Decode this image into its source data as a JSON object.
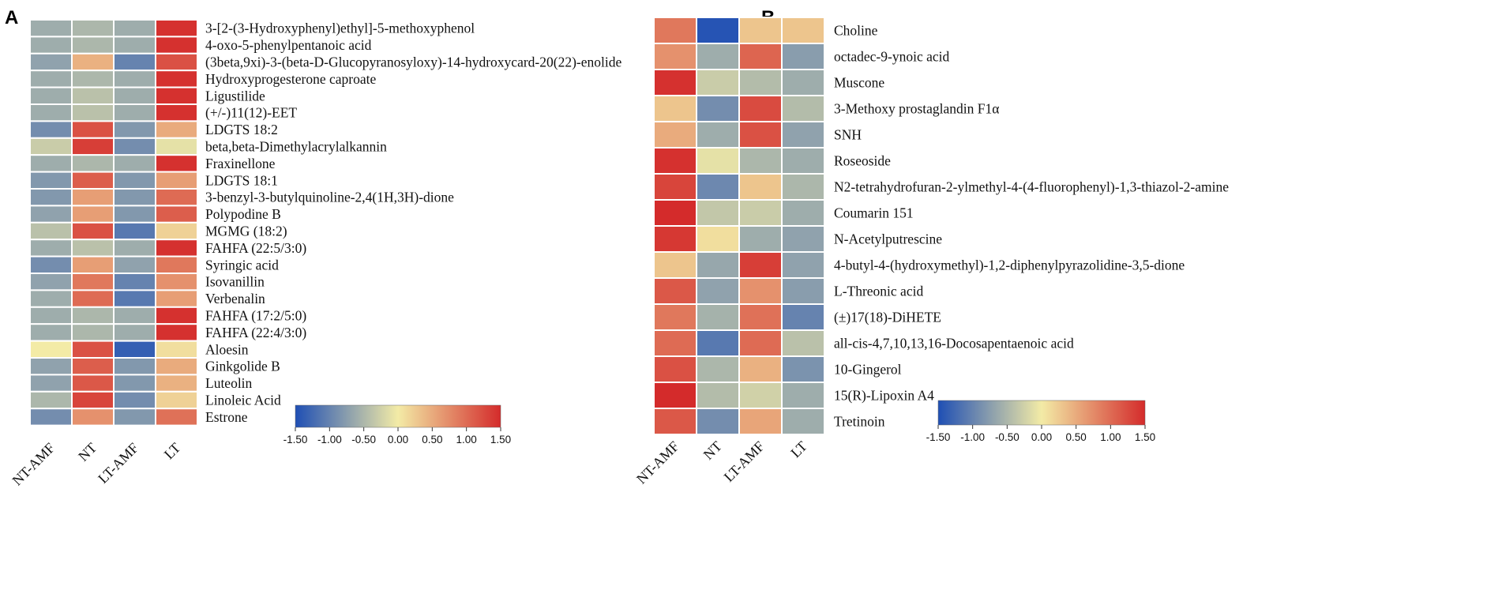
{
  "colorscale": {
    "stops": [
      "#1f4fb4",
      "#f3eba6",
      "#d42b2b"
    ],
    "min": -1.5,
    "max": 1.5
  },
  "chart_data": [
    {
      "panel": "A",
      "type": "heatmap",
      "columns": [
        "NT-AMF",
        "NT",
        "LT-AMF",
        "LT"
      ],
      "rows": [
        "3-[2-(3-Hydroxyphenyl)ethyl]-5-methoxyphenol",
        "4-oxo-5-phenylpentanoic acid",
        "(3beta,9xi)-3-(beta-D-Glucopyranosyloxy)-14-hydroxycard-20(22)-enolide",
        "Hydroxyprogesterone caproate",
        "Ligustilide",
        "(+/-)11(12)-EET",
        "LDGTS 18:2",
        "beta,beta-Dimethylacrylalkannin",
        "Fraxinellone",
        "LDGTS 18:1",
        "3-benzyl-3-butylquinoline-2,4(1H,3H)-dione",
        "Polypodine B",
        "MGMG (18:2)",
        "FAHFA (22:5/3:0)",
        "Syringic acid",
        "Isovanillin",
        "Verbenalin",
        "FAHFA (17:2/5:0)",
        "FAHFA (22:4/3:0)",
        "Aloesin",
        "Ginkgolide B",
        "Luteolin",
        "Linoleic Acid",
        "Estrone"
      ],
      "values": [
        [
          -0.6,
          -0.5,
          -0.6,
          1.45
        ],
        [
          -0.6,
          -0.5,
          -0.6,
          1.45
        ],
        [
          -0.7,
          0.45,
          -1.0,
          1.2
        ],
        [
          -0.6,
          -0.5,
          -0.6,
          1.45
        ],
        [
          -0.6,
          -0.4,
          -0.6,
          1.45
        ],
        [
          -0.6,
          -0.4,
          -0.6,
          1.45
        ],
        [
          -0.9,
          1.2,
          -0.8,
          0.5
        ],
        [
          -0.3,
          1.35,
          -0.9,
          -0.1
        ],
        [
          -0.6,
          -0.5,
          -0.6,
          1.45
        ],
        [
          -0.8,
          1.1,
          -0.8,
          0.6
        ],
        [
          -0.8,
          0.6,
          -0.8,
          1.0
        ],
        [
          -0.7,
          0.6,
          -0.8,
          1.1
        ],
        [
          -0.4,
          1.2,
          -1.1,
          0.2
        ],
        [
          -0.6,
          -0.4,
          -0.6,
          1.45
        ],
        [
          -0.9,
          0.6,
          -0.7,
          0.9
        ],
        [
          -0.7,
          0.9,
          -1.0,
          0.7
        ],
        [
          -0.6,
          1.0,
          -1.1,
          0.6
        ],
        [
          -0.6,
          -0.5,
          -0.6,
          1.45
        ],
        [
          -0.6,
          -0.5,
          -0.6,
          1.45
        ],
        [
          0.0,
          1.2,
          -1.35,
          0.1
        ],
        [
          -0.7,
          1.1,
          -0.8,
          0.5
        ],
        [
          -0.7,
          1.15,
          -0.8,
          0.45
        ],
        [
          -0.5,
          1.3,
          -0.9,
          0.2
        ],
        [
          -0.9,
          0.7,
          -0.8,
          0.95
        ]
      ],
      "colorbar_ticks": [
        "-1.50",
        "-1.00",
        "-0.50",
        "0.00",
        "0.50",
        "1.00",
        "1.50"
      ]
    },
    {
      "panel": "B",
      "type": "heatmap",
      "columns": [
        "NT-AMF",
        "NT",
        "LT-AMF",
        "LT"
      ],
      "rows": [
        "Choline",
        "octadec-9-ynoic acid",
        "Muscone",
        "3-Methoxy prostaglandin F1α",
        "SNH",
        "Roseoside",
        "N2-tetrahydrofuran-2-ylmethyl-4-(4-fluorophenyl)-1,3-thiazol-2-amine",
        "Coumarin 151",
        "N-Acetylputrescine",
        "4-butyl-4-(hydroxymethyl)-1,2-diphenylpyrazolidine-3,5-dione",
        "L-Threonic acid",
        "(±)17(18)-DiHETE",
        "all-cis-4,7,10,13,16-Docosapentaenoic acid",
        "10-Gingerol",
        "15(R)-Lipoxin A4",
        "Tretinoin"
      ],
      "values": [
        [
          0.9,
          -1.45,
          0.3,
          0.3
        ],
        [
          0.7,
          -0.6,
          1.05,
          -0.75
        ],
        [
          1.45,
          -0.3,
          -0.45,
          -0.6
        ],
        [
          0.3,
          -0.9,
          1.25,
          -0.45
        ],
        [
          0.5,
          -0.6,
          1.2,
          -0.7
        ],
        [
          1.45,
          -0.1,
          -0.5,
          -0.6
        ],
        [
          1.3,
          -0.95,
          0.3,
          -0.5
        ],
        [
          1.5,
          -0.35,
          -0.3,
          -0.6
        ],
        [
          1.4,
          0.1,
          -0.6,
          -0.7
        ],
        [
          0.3,
          -0.65,
          1.35,
          -0.7
        ],
        [
          1.15,
          -0.7,
          0.7,
          -0.75
        ],
        [
          0.9,
          -0.55,
          0.95,
          -1.0
        ],
        [
          1.0,
          -1.1,
          1.0,
          -0.4
        ],
        [
          1.2,
          -0.5,
          0.45,
          -0.85
        ],
        [
          1.5,
          -0.45,
          -0.25,
          -0.6
        ],
        [
          1.15,
          -0.9,
          0.55,
          -0.6
        ]
      ],
      "colorbar_ticks": [
        "-1.50",
        "-1.00",
        "-0.50",
        "0.00",
        "0.50",
        "1.00",
        "1.50"
      ]
    }
  ]
}
